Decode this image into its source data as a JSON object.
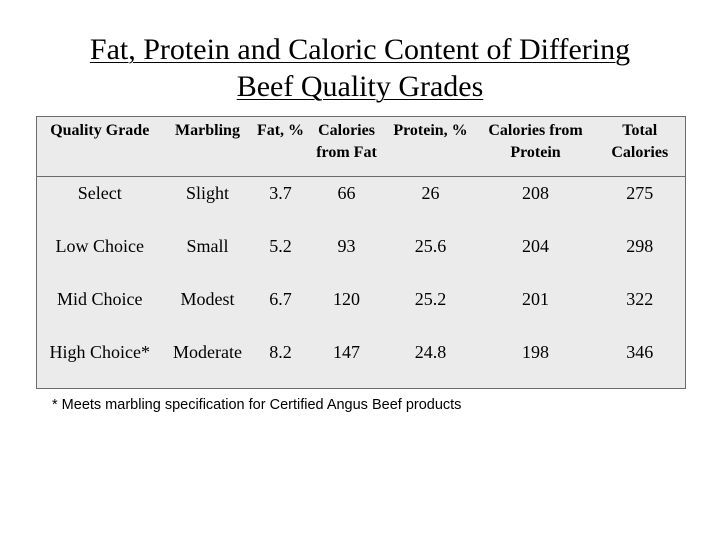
{
  "title": {
    "line1": "Fat, Protein and Caloric Content of Differing",
    "line2": "Beef Quality Grades"
  },
  "table": {
    "headers": [
      "Quality Grade",
      "Marbling",
      "Fat, %",
      "Calories from Fat",
      "Protein, %",
      "Calories from Protein",
      "Total Calories"
    ],
    "rows": [
      [
        "Select",
        "Slight",
        "3.7",
        "66",
        "26",
        "208",
        "275"
      ],
      [
        "Low Choice",
        "Small",
        "5.2",
        "93",
        "25.6",
        "204",
        "298"
      ],
      [
        "Mid Choice",
        "Modest",
        "6.7",
        "120",
        "25.2",
        "201",
        "322"
      ],
      [
        "High Choice*",
        "Moderate",
        "8.2",
        "147",
        "24.8",
        "198",
        "346"
      ]
    ]
  },
  "footnote": "* Meets marbling specification for Certified Angus Beef products",
  "colors": {
    "table_background": "#ebebeb",
    "table_border": "#6b6b6b"
  }
}
